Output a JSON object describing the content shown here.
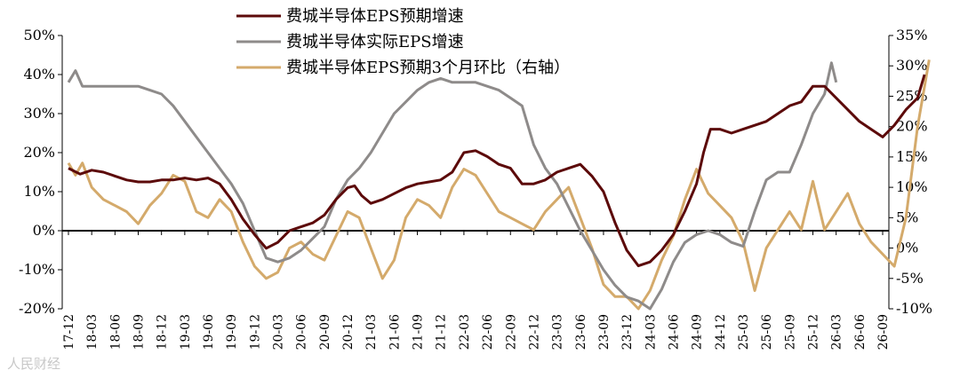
{
  "chart_data": {
    "type": "line",
    "legend_position": "top-center",
    "grid": false,
    "y_left": {
      "ticks": [
        "-20%",
        "-10%",
        "0%",
        "10%",
        "20%",
        "30%",
        "40%",
        "50%"
      ],
      "values": [
        -20,
        -10,
        0,
        10,
        20,
        30,
        40,
        50
      ],
      "lim": [
        -20,
        50
      ]
    },
    "y_right": {
      "ticks": [
        "-10%",
        "-5%",
        "0%",
        "5%",
        "10%",
        "15%",
        "20%",
        "25%",
        "30%",
        "35%"
      ],
      "values": [
        -10,
        -5,
        0,
        5,
        10,
        15,
        20,
        25,
        30,
        35
      ],
      "lim": [
        -10,
        35
      ]
    },
    "x_ticks": [
      "17-12",
      "18-03",
      "18-06",
      "18-09",
      "18-12",
      "19-03",
      "19-06",
      "19-09",
      "19-12",
      "20-03",
      "20-06",
      "20-09",
      "20-12",
      "21-03",
      "21-06",
      "21-09",
      "21-12",
      "22-03",
      "22-06",
      "22-09",
      "22-12",
      "23-03",
      "23-06",
      "23-09",
      "23-12",
      "24-03",
      "24-06",
      "24-09",
      "24-12",
      "25-03",
      "25-06",
      "25-09",
      "25-12",
      "26-03",
      "26-06",
      "26-09"
    ],
    "series": [
      {
        "name": "费城半导体EPS预期增速",
        "axis": "left",
        "color": "#5c0a0a",
        "points": [
          [
            0,
            16
          ],
          [
            0.5,
            14.5
          ],
          [
            1,
            15.5
          ],
          [
            1.5,
            15
          ],
          [
            2,
            14
          ],
          [
            2.5,
            13
          ],
          [
            3,
            12.5
          ],
          [
            3.5,
            12.5
          ],
          [
            4,
            13
          ],
          [
            4.5,
            13
          ],
          [
            5,
            13.5
          ],
          [
            5.5,
            13
          ],
          [
            6,
            13.5
          ],
          [
            6.5,
            12
          ],
          [
            7,
            8
          ],
          [
            7.5,
            3
          ],
          [
            8,
            -1
          ],
          [
            8.5,
            -4.5
          ],
          [
            9,
            -3
          ],
          [
            9.5,
            0
          ],
          [
            10,
            1
          ],
          [
            10.5,
            2
          ],
          [
            11,
            4
          ],
          [
            11.5,
            8
          ],
          [
            12,
            11
          ],
          [
            12.3,
            11.5
          ],
          [
            12.6,
            9
          ],
          [
            13,
            7
          ],
          [
            13.5,
            8
          ],
          [
            14,
            9.5
          ],
          [
            14.5,
            11
          ],
          [
            15,
            12
          ],
          [
            15.5,
            12.5
          ],
          [
            16,
            13
          ],
          [
            16.5,
            15
          ],
          [
            17,
            20
          ],
          [
            17.5,
            20.5
          ],
          [
            18,
            19
          ],
          [
            18.5,
            17
          ],
          [
            19,
            16
          ],
          [
            19.5,
            12
          ],
          [
            20,
            12
          ],
          [
            20.5,
            13
          ],
          [
            21,
            15
          ],
          [
            21.5,
            16
          ],
          [
            22,
            17
          ],
          [
            22.5,
            14
          ],
          [
            23,
            10
          ],
          [
            23.5,
            2
          ],
          [
            24,
            -5
          ],
          [
            24.5,
            -9
          ],
          [
            25,
            -8
          ],
          [
            25.5,
            -5
          ],
          [
            26,
            -1
          ],
          [
            26.5,
            5
          ],
          [
            27,
            12
          ],
          [
            27.3,
            20
          ],
          [
            27.6,
            26
          ],
          [
            28,
            26
          ],
          [
            28.5,
            25
          ],
          [
            29,
            26
          ],
          [
            29.5,
            27
          ],
          [
            30,
            28
          ],
          [
            30.5,
            30
          ],
          [
            31,
            32
          ],
          [
            31.5,
            33
          ],
          [
            32,
            37
          ],
          [
            32.5,
            37
          ],
          [
            33,
            34
          ],
          [
            33.5,
            31
          ],
          [
            34,
            28
          ],
          [
            34.5,
            26
          ],
          [
            35,
            24
          ],
          [
            35.5,
            27
          ],
          [
            36,
            31
          ],
          [
            36.5,
            34
          ],
          [
            36.8,
            40
          ]
        ]
      },
      {
        "name": "费城半导体实际EPS增速",
        "axis": "left",
        "color": "#8e8b8a",
        "points": [
          [
            0,
            38
          ],
          [
            0.3,
            41
          ],
          [
            0.6,
            37
          ],
          [
            1,
            37
          ],
          [
            2,
            37
          ],
          [
            3,
            37
          ],
          [
            3.5,
            36
          ],
          [
            4,
            35
          ],
          [
            4.5,
            32
          ],
          [
            5,
            28
          ],
          [
            5.5,
            24
          ],
          [
            6,
            20
          ],
          [
            6.5,
            16
          ],
          [
            7,
            12
          ],
          [
            7.5,
            7
          ],
          [
            8,
            0
          ],
          [
            8.5,
            -7
          ],
          [
            9,
            -8
          ],
          [
            9.5,
            -7
          ],
          [
            10,
            -5
          ],
          [
            10.5,
            -2
          ],
          [
            11,
            1
          ],
          [
            11.5,
            8
          ],
          [
            12,
            13
          ],
          [
            12.5,
            16
          ],
          [
            13,
            20
          ],
          [
            13.5,
            25
          ],
          [
            14,
            30
          ],
          [
            14.5,
            33
          ],
          [
            15,
            36
          ],
          [
            15.5,
            38
          ],
          [
            16,
            39
          ],
          [
            16.5,
            38
          ],
          [
            17,
            38
          ],
          [
            17.5,
            38
          ],
          [
            18,
            37
          ],
          [
            18.5,
            36
          ],
          [
            19,
            34
          ],
          [
            19.5,
            32
          ],
          [
            20,
            22
          ],
          [
            20.5,
            16
          ],
          [
            21,
            12
          ],
          [
            21.5,
            6
          ],
          [
            22,
            0
          ],
          [
            22.5,
            -5
          ],
          [
            23,
            -10
          ],
          [
            23.5,
            -14
          ],
          [
            24,
            -17
          ],
          [
            24.5,
            -18
          ],
          [
            25,
            -20
          ],
          [
            25.5,
            -15
          ],
          [
            26,
            -8
          ],
          [
            26.5,
            -3
          ],
          [
            27,
            -1
          ],
          [
            27.5,
            0
          ],
          [
            28,
            -1
          ],
          [
            28.5,
            -3
          ],
          [
            29,
            -4
          ],
          [
            29.5,
            5
          ],
          [
            30,
            13
          ],
          [
            30.5,
            15
          ],
          [
            31,
            15
          ],
          [
            31.5,
            22
          ],
          [
            32,
            30
          ],
          [
            32.5,
            35
          ],
          [
            32.8,
            43
          ],
          [
            33,
            38
          ]
        ]
      },
      {
        "name": "费城半导体EPS预期3个月环比（右轴）",
        "axis": "right",
        "color": "#d4aa6b",
        "points": [
          [
            0,
            14
          ],
          [
            0.3,
            12
          ],
          [
            0.6,
            14
          ],
          [
            1,
            10
          ],
          [
            1.5,
            8
          ],
          [
            2,
            7
          ],
          [
            2.5,
            6
          ],
          [
            3,
            4
          ],
          [
            3.5,
            7
          ],
          [
            4,
            9
          ],
          [
            4.5,
            12
          ],
          [
            5,
            11
          ],
          [
            5.5,
            6
          ],
          [
            6,
            5
          ],
          [
            6.5,
            8
          ],
          [
            7,
            6
          ],
          [
            7.5,
            1
          ],
          [
            8,
            -3
          ],
          [
            8.5,
            -5
          ],
          [
            9,
            -4
          ],
          [
            9.5,
            0
          ],
          [
            10,
            1
          ],
          [
            10.5,
            -1
          ],
          [
            11,
            -2
          ],
          [
            11.5,
            2
          ],
          [
            12,
            6
          ],
          [
            12.5,
            5
          ],
          [
            13,
            0
          ],
          [
            13.5,
            -5
          ],
          [
            14,
            -2
          ],
          [
            14.5,
            5
          ],
          [
            15,
            8
          ],
          [
            15.5,
            7
          ],
          [
            16,
            5
          ],
          [
            16.5,
            10
          ],
          [
            17,
            13
          ],
          [
            17.5,
            12
          ],
          [
            18,
            9
          ],
          [
            18.5,
            6
          ],
          [
            19,
            5
          ],
          [
            19.5,
            4
          ],
          [
            20,
            3
          ],
          [
            20.5,
            6
          ],
          [
            21,
            8
          ],
          [
            21.5,
            10
          ],
          [
            22,
            5
          ],
          [
            22.5,
            0
          ],
          [
            23,
            -6
          ],
          [
            23.5,
            -8
          ],
          [
            24,
            -8
          ],
          [
            24.5,
            -10
          ],
          [
            25,
            -7
          ],
          [
            25.5,
            -2
          ],
          [
            26,
            2
          ],
          [
            26.5,
            8
          ],
          [
            27,
            13
          ],
          [
            27.5,
            9
          ],
          [
            28,
            7
          ],
          [
            28.5,
            5
          ],
          [
            29,
            1
          ],
          [
            29.5,
            -7
          ],
          [
            30,
            0
          ],
          [
            30.5,
            3
          ],
          [
            31,
            6
          ],
          [
            31.5,
            3
          ],
          [
            32,
            11
          ],
          [
            32.5,
            3
          ],
          [
            33,
            6
          ],
          [
            33.5,
            9
          ],
          [
            34,
            4
          ],
          [
            34.5,
            1
          ],
          [
            35,
            -1
          ],
          [
            35.5,
            -3
          ],
          [
            36,
            5
          ],
          [
            36.5,
            20
          ],
          [
            37,
            31
          ]
        ]
      }
    ]
  },
  "watermark": "人民财经"
}
